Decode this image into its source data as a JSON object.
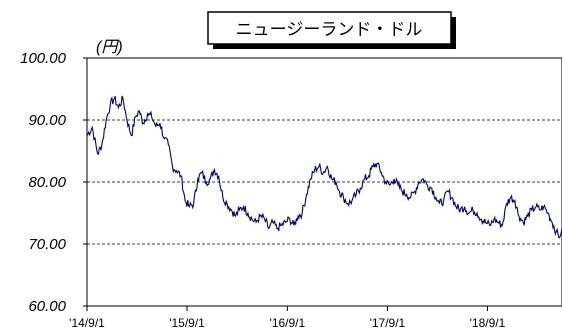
{
  "chart_data": {
    "type": "line",
    "title": "ニュージーランド・ドル",
    "unit_label": "(円)",
    "xlabel": "",
    "ylabel": "",
    "ylim": [
      60,
      100
    ],
    "y_ticks": [
      "100.00",
      "90.00",
      "80.00",
      "70.00",
      "60.00"
    ],
    "y_tick_values": [
      100,
      90,
      80,
      70,
      60
    ],
    "x_ticks": [
      "'14/9/1",
      "'15/9/1",
      "'16/9/1",
      "'17/9/1",
      "'18/9/1"
    ],
    "x_tick_dates": [
      "2014-09-01",
      "2015-09-01",
      "2016-09-01",
      "2017-09-01",
      "2018-09-01"
    ],
    "x_range": [
      "2014-09-01",
      "2019-05-31"
    ],
    "grid": "horizontal dashed",
    "legend": "none",
    "line_color": "#000080",
    "series": [
      {
        "values": [
          [
            "2014-09-01",
            87.5
          ],
          [
            "2014-09-20",
            88.8
          ],
          [
            "2014-10-10",
            84.5
          ],
          [
            "2014-10-25",
            86.0
          ],
          [
            "2014-11-10",
            90.0
          ],
          [
            "2014-11-25",
            92.5
          ],
          [
            "2014-12-10",
            93.5
          ],
          [
            "2014-12-25",
            92.0
          ],
          [
            "2015-01-10",
            93.5
          ],
          [
            "2015-01-25",
            90.0
          ],
          [
            "2015-02-10",
            87.5
          ],
          [
            "2015-02-25",
            90.5
          ],
          [
            "2015-03-10",
            91.5
          ],
          [
            "2015-03-25",
            89.5
          ],
          [
            "2015-04-10",
            91.0
          ],
          [
            "2015-04-25",
            90.5
          ],
          [
            "2015-05-10",
            89.0
          ],
          [
            "2015-05-25",
            89.5
          ],
          [
            "2015-06-10",
            87.0
          ],
          [
            "2015-06-25",
            86.0
          ],
          [
            "2015-07-10",
            82.5
          ],
          [
            "2015-07-25",
            81.8
          ],
          [
            "2015-08-10",
            81.0
          ],
          [
            "2015-08-25",
            77.0
          ],
          [
            "2015-09-10",
            76.0
          ],
          [
            "2015-09-25",
            76.5
          ],
          [
            "2015-10-10",
            80.5
          ],
          [
            "2015-10-25",
            81.5
          ],
          [
            "2015-11-10",
            80.0
          ],
          [
            "2015-11-25",
            80.5
          ],
          [
            "2015-12-10",
            82.0
          ],
          [
            "2015-12-25",
            81.0
          ],
          [
            "2016-01-10",
            77.5
          ],
          [
            "2016-01-25",
            76.5
          ],
          [
            "2016-02-10",
            75.5
          ],
          [
            "2016-02-25",
            74.5
          ],
          [
            "2016-03-10",
            75.5
          ],
          [
            "2016-03-25",
            76.0
          ],
          [
            "2016-04-10",
            75.0
          ],
          [
            "2016-04-25",
            74.0
          ],
          [
            "2016-05-10",
            73.5
          ],
          [
            "2016-05-25",
            74.5
          ],
          [
            "2016-06-10",
            74.0
          ],
          [
            "2016-06-25",
            72.5
          ],
          [
            "2016-07-10",
            73.5
          ],
          [
            "2016-07-25",
            72.5
          ],
          [
            "2016-08-10",
            73.0
          ],
          [
            "2016-08-25",
            73.5
          ],
          [
            "2016-09-10",
            74.0
          ],
          [
            "2016-09-25",
            73.0
          ],
          [
            "2016-10-10",
            74.5
          ],
          [
            "2016-10-25",
            75.0
          ],
          [
            "2016-11-10",
            78.0
          ],
          [
            "2016-11-25",
            80.5
          ],
          [
            "2016-12-10",
            82.0
          ],
          [
            "2016-12-25",
            82.5
          ],
          [
            "2017-01-10",
            81.5
          ],
          [
            "2017-01-25",
            82.5
          ],
          [
            "2017-02-10",
            80.5
          ],
          [
            "2017-02-25",
            80.0
          ],
          [
            "2017-03-10",
            78.5
          ],
          [
            "2017-03-25",
            77.5
          ],
          [
            "2017-04-10",
            76.5
          ],
          [
            "2017-04-25",
            77.0
          ],
          [
            "2017-05-10",
            78.0
          ],
          [
            "2017-05-25",
            79.0
          ],
          [
            "2017-06-10",
            80.5
          ],
          [
            "2017-06-25",
            81.0
          ],
          [
            "2017-07-10",
            82.5
          ],
          [
            "2017-07-25",
            83.0
          ],
          [
            "2017-08-10",
            81.5
          ],
          [
            "2017-08-25",
            80.0
          ],
          [
            "2017-09-10",
            79.5
          ],
          [
            "2017-09-25",
            80.5
          ],
          [
            "2017-10-10",
            79.5
          ],
          [
            "2017-10-25",
            78.5
          ],
          [
            "2017-11-10",
            78.0
          ],
          [
            "2017-11-25",
            77.5
          ],
          [
            "2017-12-10",
            78.5
          ],
          [
            "2017-12-25",
            80.0
          ],
          [
            "2018-01-10",
            80.5
          ],
          [
            "2018-01-25",
            79.5
          ],
          [
            "2018-02-10",
            79.0
          ],
          [
            "2018-02-25",
            77.5
          ],
          [
            "2018-03-10",
            76.5
          ],
          [
            "2018-03-25",
            77.0
          ],
          [
            "2018-04-10",
            78.5
          ],
          [
            "2018-04-25",
            77.5
          ],
          [
            "2018-05-10",
            76.0
          ],
          [
            "2018-05-25",
            75.5
          ],
          [
            "2018-06-10",
            76.0
          ],
          [
            "2018-06-25",
            75.0
          ],
          [
            "2018-07-10",
            75.5
          ],
          [
            "2018-07-25",
            75.0
          ],
          [
            "2018-08-10",
            74.0
          ],
          [
            "2018-08-25",
            73.5
          ],
          [
            "2018-09-10",
            73.0
          ],
          [
            "2018-09-25",
            74.0
          ],
          [
            "2018-10-10",
            73.5
          ],
          [
            "2018-10-25",
            73.0
          ],
          [
            "2018-11-10",
            76.5
          ],
          [
            "2018-11-25",
            77.5
          ],
          [
            "2018-12-10",
            77.0
          ],
          [
            "2018-12-25",
            74.5
          ],
          [
            "2019-01-10",
            73.5
          ],
          [
            "2019-01-25",
            74.5
          ],
          [
            "2019-02-10",
            75.5
          ],
          [
            "2019-02-25",
            76.0
          ],
          [
            "2019-03-10",
            75.5
          ],
          [
            "2019-03-25",
            76.0
          ],
          [
            "2019-04-10",
            75.0
          ],
          [
            "2019-04-25",
            73.5
          ],
          [
            "2019-05-10",
            72.0
          ],
          [
            "2019-05-20",
            71.0
          ],
          [
            "2019-05-31",
            72.5
          ]
        ]
      }
    ]
  }
}
